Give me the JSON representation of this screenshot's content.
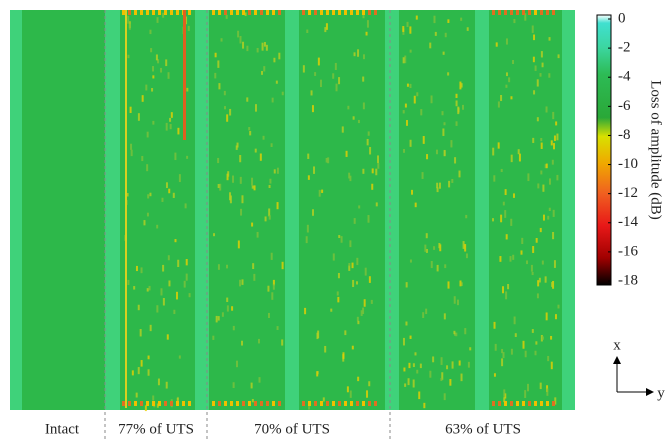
{
  "groups": [
    "Intact",
    "77% of UTS",
    "70% of UTS",
    "63% of UTS"
  ],
  "colorbar": {
    "label": "Loss of amplitude (dB)",
    "lim": [
      -18,
      0
    ],
    "ticks": [
      0,
      -2,
      -4,
      -6,
      -8,
      -10,
      -12,
      -14,
      -16,
      -18
    ]
  },
  "axes": {
    "x": "x",
    "y": "y"
  }
}
